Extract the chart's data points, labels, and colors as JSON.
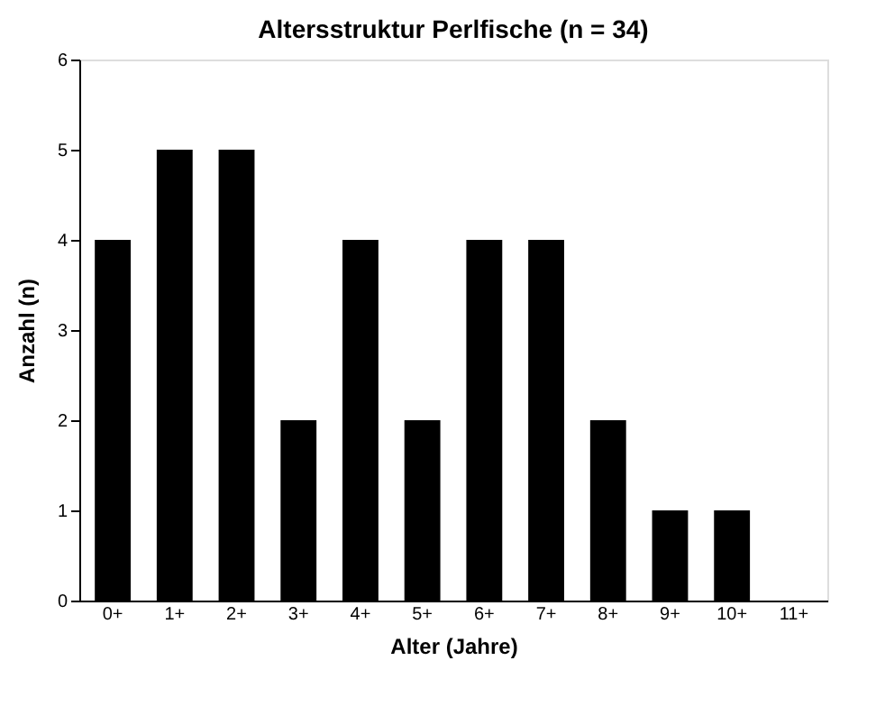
{
  "chart_data": {
    "type": "bar",
    "title": "Altersstruktur Perlfische (n = 34)",
    "xlabel": "Alter (Jahre)",
    "ylabel": "Anzahl (n)",
    "categories": [
      "0+",
      "1+",
      "2+",
      "3+",
      "4+",
      "5+",
      "6+",
      "7+",
      "8+",
      "9+",
      "10+",
      "11+"
    ],
    "values": [
      4,
      5,
      5,
      2,
      4,
      2,
      4,
      4,
      2,
      1,
      1,
      null
    ],
    "color": "#000000",
    "ylim": [
      0,
      6
    ],
    "yticks": [
      0,
      1,
      2,
      3,
      4,
      5,
      6
    ],
    "grid": false
  }
}
